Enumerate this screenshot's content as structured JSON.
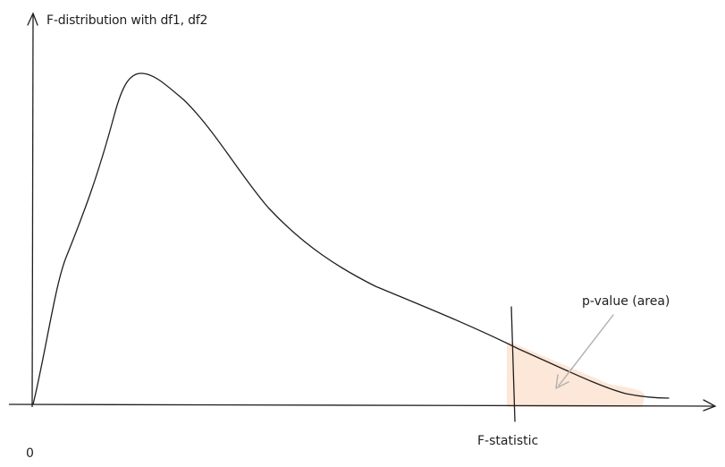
{
  "diagram": {
    "y_axis_title": "F-distribution with df1, df2",
    "origin_label": "0",
    "f_statistic_label": "F-statistic",
    "p_value_label": "p-value (area)"
  },
  "colors": {
    "stroke": "#1e1e1e",
    "shaded_area": "#fde5d4",
    "annotation_arrow": "#b0b0b0"
  }
}
